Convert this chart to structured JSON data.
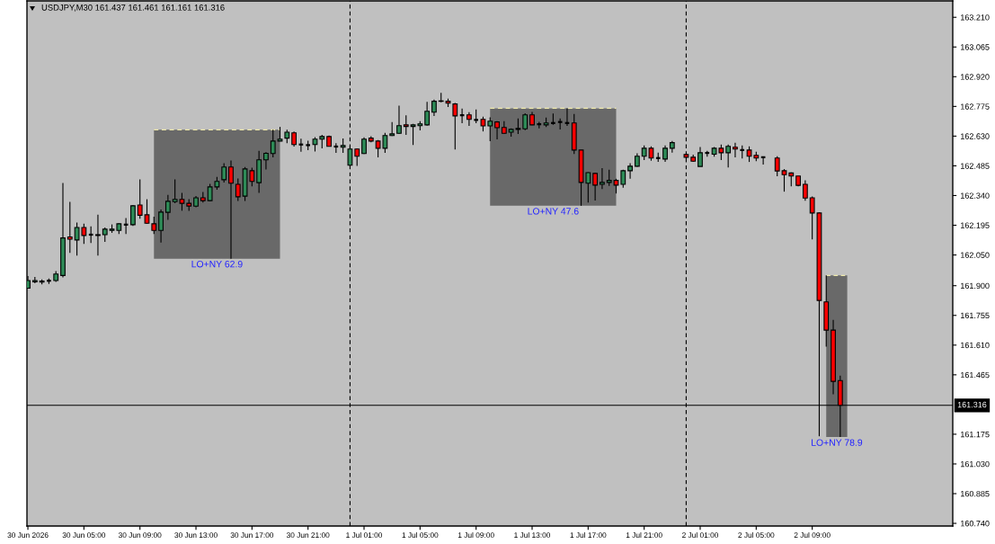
{
  "chart_data": {
    "type": "candlestick",
    "title": "USDJPY,M30 161.437 161.461 161.161 161.316",
    "x": [
      "2026-06-30T01:00",
      "2026-06-30T01:30",
      "2026-06-30T02:00",
      "2026-06-30T02:30",
      "2026-06-30T03:00",
      "2026-06-30T03:30",
      "2026-06-30T04:00",
      "2026-06-30T04:30",
      "2026-06-30T05:00",
      "2026-06-30T05:30",
      "2026-06-30T06:00",
      "2026-06-30T06:30",
      "2026-06-30T07:00",
      "2026-06-30T07:30",
      "2026-06-30T08:00",
      "2026-06-30T08:30",
      "2026-06-30T09:00",
      "2026-06-30T09:30",
      "2026-06-30T10:00",
      "2026-06-30T10:30",
      "2026-06-30T11:00",
      "2026-06-30T11:30",
      "2026-06-30T12:00",
      "2026-06-30T12:30",
      "2026-06-30T13:00",
      "2026-06-30T13:30",
      "2026-06-30T14:00",
      "2026-06-30T14:30",
      "2026-06-30T15:00",
      "2026-06-30T15:30",
      "2026-06-30T16:00",
      "2026-06-30T16:30",
      "2026-06-30T17:00",
      "2026-06-30T17:30",
      "2026-06-30T18:00",
      "2026-06-30T18:30",
      "2026-06-30T19:00",
      "2026-06-30T19:30",
      "2026-06-30T20:00",
      "2026-06-30T20:30",
      "2026-06-30T21:00",
      "2026-06-30T21:30",
      "2026-06-30T22:00",
      "2026-06-30T22:30",
      "2026-06-30T23:00",
      "2026-06-30T23:30",
      "2026-07-01T00:00",
      "2026-07-01T00:30",
      "2026-07-01T01:00",
      "2026-07-01T01:30",
      "2026-07-01T02:00",
      "2026-07-01T02:30",
      "2026-07-01T03:00",
      "2026-07-01T03:30",
      "2026-07-01T04:00",
      "2026-07-01T04:30",
      "2026-07-01T05:00",
      "2026-07-01T05:30",
      "2026-07-01T06:00",
      "2026-07-01T06:30",
      "2026-07-01T07:00",
      "2026-07-01T07:30",
      "2026-07-01T08:00",
      "2026-07-01T08:30",
      "2026-07-01T09:00",
      "2026-07-01T09:30",
      "2026-07-01T10:00",
      "2026-07-01T10:30",
      "2026-07-01T11:00",
      "2026-07-01T11:30",
      "2026-07-01T12:00",
      "2026-07-01T12:30",
      "2026-07-01T13:00",
      "2026-07-01T13:30",
      "2026-07-01T14:00",
      "2026-07-01T14:30",
      "2026-07-01T15:00",
      "2026-07-01T15:30",
      "2026-07-01T16:00",
      "2026-07-01T16:30",
      "2026-07-01T17:00",
      "2026-07-01T17:30",
      "2026-07-01T18:00",
      "2026-07-01T18:30",
      "2026-07-01T19:00",
      "2026-07-01T19:30",
      "2026-07-01T20:00",
      "2026-07-01T20:30",
      "2026-07-01T21:00",
      "2026-07-01T21:30",
      "2026-07-01T22:00",
      "2026-07-01T22:30",
      "2026-07-01T23:00",
      "2026-07-02T00:00",
      "2026-07-02T00:30",
      "2026-07-02T01:00",
      "2026-07-02T01:30",
      "2026-07-02T02:00",
      "2026-07-02T02:30",
      "2026-07-02T03:00",
      "2026-07-02T03:30",
      "2026-07-02T04:00",
      "2026-07-02T04:30",
      "2026-07-02T05:00",
      "2026-07-02T05:30",
      "2026-07-02T06:30",
      "2026-07-02T07:00",
      "2026-07-02T07:30",
      "2026-07-02T08:00",
      "2026-07-02T08:30",
      "2026-07-02T09:00",
      "2026-07-02T09:30",
      "2026-07-02T10:00",
      "2026-07-02T10:30",
      "2026-07-02T11:00"
    ],
    "ohlc": [
      [
        161.888,
        161.947,
        161.886,
        161.925
      ],
      [
        161.919,
        161.943,
        161.912,
        161.925
      ],
      [
        161.923,
        161.931,
        161.906,
        161.918
      ],
      [
        161.924,
        161.935,
        161.909,
        161.924
      ],
      [
        161.925,
        161.971,
        161.919,
        161.957
      ],
      [
        161.95,
        162.401,
        161.941,
        162.133
      ],
      [
        162.138,
        162.309,
        162.06,
        162.127
      ],
      [
        162.123,
        162.208,
        162.047,
        162.184
      ],
      [
        162.184,
        162.203,
        162.104,
        162.145
      ],
      [
        162.149,
        162.19,
        162.108,
        162.149
      ],
      [
        162.149,
        162.247,
        162.047,
        162.145
      ],
      [
        162.149,
        162.184,
        162.114,
        162.176
      ],
      [
        162.17,
        162.199,
        162.158,
        162.176
      ],
      [
        162.17,
        162.205,
        162.152,
        162.202
      ],
      [
        162.198,
        162.23,
        162.152,
        162.198
      ],
      [
        162.198,
        162.294,
        162.192,
        162.29
      ],
      [
        162.294,
        162.419,
        162.227,
        162.244
      ],
      [
        162.246,
        162.322,
        162.202,
        162.205
      ],
      [
        162.202,
        162.237,
        162.152,
        162.17
      ],
      [
        162.17,
        162.272,
        162.111,
        162.259
      ],
      [
        162.258,
        162.343,
        162.221,
        162.312
      ],
      [
        162.31,
        162.419,
        162.302,
        162.321
      ],
      [
        162.321,
        162.353,
        162.266,
        162.302
      ],
      [
        162.302,
        162.322,
        162.265,
        162.289
      ],
      [
        162.288,
        162.338,
        162.283,
        162.329
      ],
      [
        162.329,
        162.357,
        162.306,
        162.315
      ],
      [
        162.315,
        162.397,
        162.312,
        162.382
      ],
      [
        162.382,
        162.431,
        162.368,
        162.409
      ],
      [
        162.417,
        162.498,
        162.403,
        162.479
      ],
      [
        162.479,
        162.511,
        162.032,
        162.4
      ],
      [
        162.395,
        162.423,
        162.313,
        162.334
      ],
      [
        162.337,
        162.479,
        162.313,
        162.47
      ],
      [
        162.461,
        162.476,
        162.385,
        162.409
      ],
      [
        162.403,
        162.558,
        162.353,
        162.514
      ],
      [
        162.514,
        162.552,
        162.467,
        162.546
      ],
      [
        162.545,
        162.661,
        162.526,
        162.606
      ],
      [
        162.606,
        162.675,
        162.605,
        162.615
      ],
      [
        162.62,
        162.661,
        162.596,
        162.649
      ],
      [
        162.646,
        162.652,
        162.579,
        162.589
      ],
      [
        162.589,
        162.617,
        162.554,
        162.589
      ],
      [
        162.586,
        162.608,
        162.561,
        162.586
      ],
      [
        162.589,
        162.625,
        162.555,
        162.615
      ],
      [
        162.615,
        162.636,
        162.57,
        162.628
      ],
      [
        162.628,
        162.633,
        162.579,
        162.58
      ],
      [
        162.579,
        162.595,
        162.548,
        162.579
      ],
      [
        162.576,
        162.618,
        162.548,
        162.584
      ],
      [
        162.488,
        162.581,
        162.485,
        162.567
      ],
      [
        162.567,
        162.57,
        162.485,
        162.532
      ],
      [
        162.545,
        162.624,
        162.543,
        162.615
      ],
      [
        162.62,
        162.63,
        162.6,
        162.606
      ],
      [
        162.606,
        162.611,
        162.526,
        162.571
      ],
      [
        162.571,
        162.646,
        162.548,
        162.633
      ],
      [
        162.633,
        162.699,
        162.631,
        162.641
      ],
      [
        162.644,
        162.779,
        162.641,
        162.681
      ],
      [
        162.685,
        162.731,
        162.636,
        162.677
      ],
      [
        162.677,
        162.69,
        162.587,
        162.685
      ],
      [
        162.681,
        162.703,
        162.658,
        162.69
      ],
      [
        162.685,
        162.797,
        162.681,
        162.751
      ],
      [
        162.747,
        162.808,
        162.728,
        162.8
      ],
      [
        162.802,
        162.841,
        162.795,
        162.8
      ],
      [
        162.8,
        162.813,
        162.772,
        162.791
      ],
      [
        162.787,
        162.792,
        162.565,
        162.729
      ],
      [
        162.732,
        162.765,
        162.693,
        162.732
      ],
      [
        162.734,
        162.747,
        162.68,
        162.712
      ],
      [
        162.709,
        162.76,
        162.693,
        162.709
      ],
      [
        162.712,
        162.725,
        162.653,
        162.68
      ],
      [
        162.68,
        162.722,
        162.605,
        162.703
      ],
      [
        162.699,
        162.703,
        162.614,
        162.671
      ],
      [
        162.672,
        162.703,
        162.643,
        162.644
      ],
      [
        162.649,
        162.668,
        162.627,
        162.663
      ],
      [
        162.663,
        162.716,
        162.64,
        162.668
      ],
      [
        162.666,
        162.741,
        162.659,
        162.734
      ],
      [
        162.734,
        162.748,
        162.683,
        162.685
      ],
      [
        162.688,
        162.7,
        162.668,
        162.688
      ],
      [
        162.685,
        162.721,
        162.674,
        162.694
      ],
      [
        162.694,
        162.74,
        162.685,
        162.694
      ],
      [
        162.699,
        162.716,
        162.662,
        162.699
      ],
      [
        162.694,
        162.766,
        162.68,
        162.694
      ],
      [
        162.694,
        162.738,
        162.543,
        162.562
      ],
      [
        162.562,
        162.562,
        162.29,
        162.404
      ],
      [
        162.4,
        162.454,
        162.306,
        162.452
      ],
      [
        162.448,
        162.452,
        162.316,
        162.391
      ],
      [
        162.395,
        162.474,
        162.372,
        162.404
      ],
      [
        162.404,
        162.466,
        162.387,
        162.414
      ],
      [
        162.414,
        162.422,
        162.35,
        162.391
      ],
      [
        162.395,
        162.466,
        162.378,
        162.461
      ],
      [
        162.461,
        162.498,
        162.422,
        162.483
      ],
      [
        162.483,
        162.546,
        162.48,
        162.532
      ],
      [
        162.532,
        162.584,
        162.513,
        162.571
      ],
      [
        162.571,
        162.58,
        162.51,
        162.523
      ],
      [
        162.523,
        162.549,
        162.504,
        162.523
      ],
      [
        162.518,
        162.584,
        162.504,
        162.571
      ],
      [
        162.571,
        162.606,
        162.549,
        162.598
      ],
      [
        162.54,
        162.545,
        162.521,
        162.527
      ],
      [
        162.527,
        162.54,
        162.504,
        162.508
      ],
      [
        162.482,
        162.577,
        162.482,
        162.549
      ],
      [
        162.548,
        162.558,
        162.53,
        162.548
      ],
      [
        162.542,
        162.577,
        162.53,
        162.571
      ],
      [
        162.571,
        162.589,
        162.513,
        162.549
      ],
      [
        162.549,
        162.589,
        162.477,
        162.58
      ],
      [
        162.576,
        162.598,
        162.526,
        162.567
      ],
      [
        162.562,
        162.584,
        162.521,
        162.562
      ],
      [
        162.562,
        162.58,
        162.504,
        162.532
      ],
      [
        162.536,
        162.554,
        162.508,
        162.523
      ],
      [
        162.527,
        162.527,
        162.491,
        162.527
      ],
      [
        162.523,
        162.532,
        162.434,
        162.46
      ],
      [
        162.461,
        162.469,
        162.359,
        162.442
      ],
      [
        162.45,
        162.453,
        162.385,
        162.435
      ],
      [
        162.435,
        162.435,
        162.385,
        162.39
      ],
      [
        162.395,
        162.414,
        162.315,
        162.328
      ],
      [
        162.329,
        162.335,
        162.126,
        162.255
      ],
      [
        162.255,
        162.258,
        161.165,
        161.828
      ],
      [
        161.821,
        161.95,
        161.603,
        161.683
      ],
      [
        161.683,
        161.733,
        161.37,
        161.433
      ],
      [
        161.437,
        161.461,
        161.161,
        161.316
      ]
    ],
    "colors": [
      "#2e8b57",
      "#2e8b57",
      "#ff0000",
      "#000000",
      "#2e8b57",
      "#2e8b57",
      "#ff0000",
      "#2e8b57",
      "#ff0000",
      "#000000",
      "#ff0000",
      "#2e8b57",
      "#2e8b57",
      "#2e8b57",
      "#000000",
      "#2e8b57",
      "#ff0000",
      "#ff0000",
      "#ff0000",
      "#2e8b57",
      "#2e8b57",
      "#2e8b57",
      "#ff0000",
      "#ff0000",
      "#2e8b57",
      "#ff0000",
      "#2e8b57",
      "#2e8b57",
      "#2e8b57",
      "#ff0000",
      "#ff0000",
      "#2e8b57",
      "#ff0000",
      "#2e8b57",
      "#2e8b57",
      "#2e8b57",
      "#2e8b57",
      "#2e8b57",
      "#ff0000",
      "#000000",
      "#000000",
      "#2e8b57",
      "#2e8b57",
      "#ff0000",
      "#000000",
      "#2e8b57",
      "#2e8b57",
      "#ff0000",
      "#2e8b57",
      "#ff0000",
      "#ff0000",
      "#2e8b57",
      "#2e8b57",
      "#2e8b57",
      "#ff0000",
      "#2e8b57",
      "#2e8b57",
      "#2e8b57",
      "#2e8b57",
      "#ff0000",
      "#ff0000",
      "#ff0000",
      "#000000",
      "#ff0000",
      "#000000",
      "#ff0000",
      "#2e8b57",
      "#ff0000",
      "#ff0000",
      "#2e8b57",
      "#2e8b57",
      "#2e8b57",
      "#ff0000",
      "#000000",
      "#2e8b57",
      "#000000",
      "#000000",
      "#000000",
      "#ff0000",
      "#ff0000",
      "#2e8b57",
      "#ff0000",
      "#2e8b57",
      "#2e8b57",
      "#ff0000",
      "#2e8b57",
      "#2e8b57",
      "#2e8b57",
      "#2e8b57",
      "#ff0000",
      "#000000",
      "#2e8b57",
      "#2e8b57",
      "#ff0000",
      "#ff0000",
      "#2e8b57",
      "#000000",
      "#2e8b57",
      "#ff0000",
      "#2e8b57",
      "#ff0000",
      "#000000",
      "#ff0000",
      "#ff0000",
      "#000000",
      "#ff0000",
      "#ff0000",
      "#ff0000",
      "#ff0000",
      "#ff0000",
      "#ff0000",
      "#ff0000",
      "#ff0000",
      "#ff0000",
      "#ff0000"
    ],
    "series": [
      {
        "type": "line",
        "color": "#eee8aa",
        "line_style": "dashed",
        "x": [
          "2026-06-30T10:00",
          "2026-06-30T19:00"
        ],
        "values": [
          162.661,
          162.661
        ],
        "lower": [
          162.032,
          162.032
        ],
        "upper": [
          162.661,
          162.661
        ]
      },
      {
        "type": "line",
        "color": "#eee8aa",
        "line_style": "dashed",
        "x": [
          "2026-07-01T10:00",
          "2026-07-01T19:00"
        ],
        "values": [
          162.766,
          162.766
        ],
        "lower": [
          162.29,
          162.29
        ],
        "upper": [
          162.766,
          162.766
        ]
      },
      {
        "type": "line",
        "color": "#eee8aa",
        "line_style": "dashed",
        "x": [
          "2026-07-02T10:00",
          "2026-07-02T11:30"
        ],
        "values": [
          161.95,
          161.95
        ],
        "lower": [
          161.161,
          161.161
        ],
        "upper": [
          161.95,
          161.95
        ]
      }
    ],
    "annotations": [
      "LO+NY 62.9",
      "LO+NY 47.6",
      "LO+NY 78.9"
    ],
    "ref_lines": [
      {
        "axis": "x",
        "value": "2026-07-01T00:00",
        "color": "#000000",
        "line_style": "dashed"
      },
      {
        "axis": "x",
        "value": "2026-07-02T00:00",
        "color": "#000000",
        "line_style": "dashed"
      },
      {
        "axis": "y",
        "value": 161.316,
        "label": "161.316",
        "color": "#000000",
        "line_style": "solid"
      }
    ],
    "xlim": [
      "2026-06-30T00:56",
      "2026-07-02T19:02"
    ],
    "ylim": [
      160.727,
      163.29
    ],
    "xticks": [
      {
        "value": "2026-06-30T01:00",
        "label": "30 Jun 2026"
      },
      {
        "value": "2026-06-30T05:00",
        "label": "30 Jun 05:00"
      },
      {
        "value": "2026-06-30T09:00",
        "label": "30 Jun 09:00"
      },
      {
        "value": "2026-06-30T13:00",
        "label": "30 Jun 13:00"
      },
      {
        "value": "2026-06-30T17:00",
        "label": "30 Jun 17:00"
      },
      {
        "value": "2026-06-30T21:00",
        "label": "30 Jun 21:00"
      },
      {
        "value": "2026-07-01T01:00",
        "label": "1 Jul 01:00"
      },
      {
        "value": "2026-07-01T05:00",
        "label": "1 Jul 05:00"
      },
      {
        "value": "2026-07-01T09:00",
        "label": "1 Jul 09:00"
      },
      {
        "value": "2026-07-01T13:00",
        "label": "1 Jul 13:00"
      },
      {
        "value": "2026-07-01T17:00",
        "label": "1 Jul 17:00"
      },
      {
        "value": "2026-07-01T21:00",
        "label": "1 Jul 21:00"
      },
      {
        "value": "2026-07-02T01:00",
        "label": "2 Jul 01:00"
      },
      {
        "value": "2026-07-02T05:00",
        "label": "2 Jul 05:00"
      },
      {
        "value": "2026-07-02T09:00",
        "label": "2 Jul 09:00"
      }
    ],
    "yticks": [
      {
        "value": 163.21,
        "label": "163.210"
      },
      {
        "value": 163.065,
        "label": "163.065"
      },
      {
        "value": 162.92,
        "label": "162.920"
      },
      {
        "value": 162.775,
        "label": "162.775"
      },
      {
        "value": 162.63,
        "label": "162.630"
      },
      {
        "value": 162.485,
        "label": "162.485"
      },
      {
        "value": 162.34,
        "label": "162.340"
      },
      {
        "value": 162.195,
        "label": "162.195"
      },
      {
        "value": 162.05,
        "label": "162.050"
      },
      {
        "value": 161.9,
        "label": "161.900"
      },
      {
        "value": 161.755,
        "label": "161.755"
      },
      {
        "value": 161.61,
        "label": "161.610"
      },
      {
        "value": 161.465,
        "label": "161.465"
      },
      {
        "value": 161.175,
        "label": "161.175"
      },
      {
        "value": 161.03,
        "label": "161.030"
      },
      {
        "value": 160.885,
        "label": "160.885"
      },
      {
        "value": 160.74,
        "label": "160.740"
      }
    ]
  }
}
